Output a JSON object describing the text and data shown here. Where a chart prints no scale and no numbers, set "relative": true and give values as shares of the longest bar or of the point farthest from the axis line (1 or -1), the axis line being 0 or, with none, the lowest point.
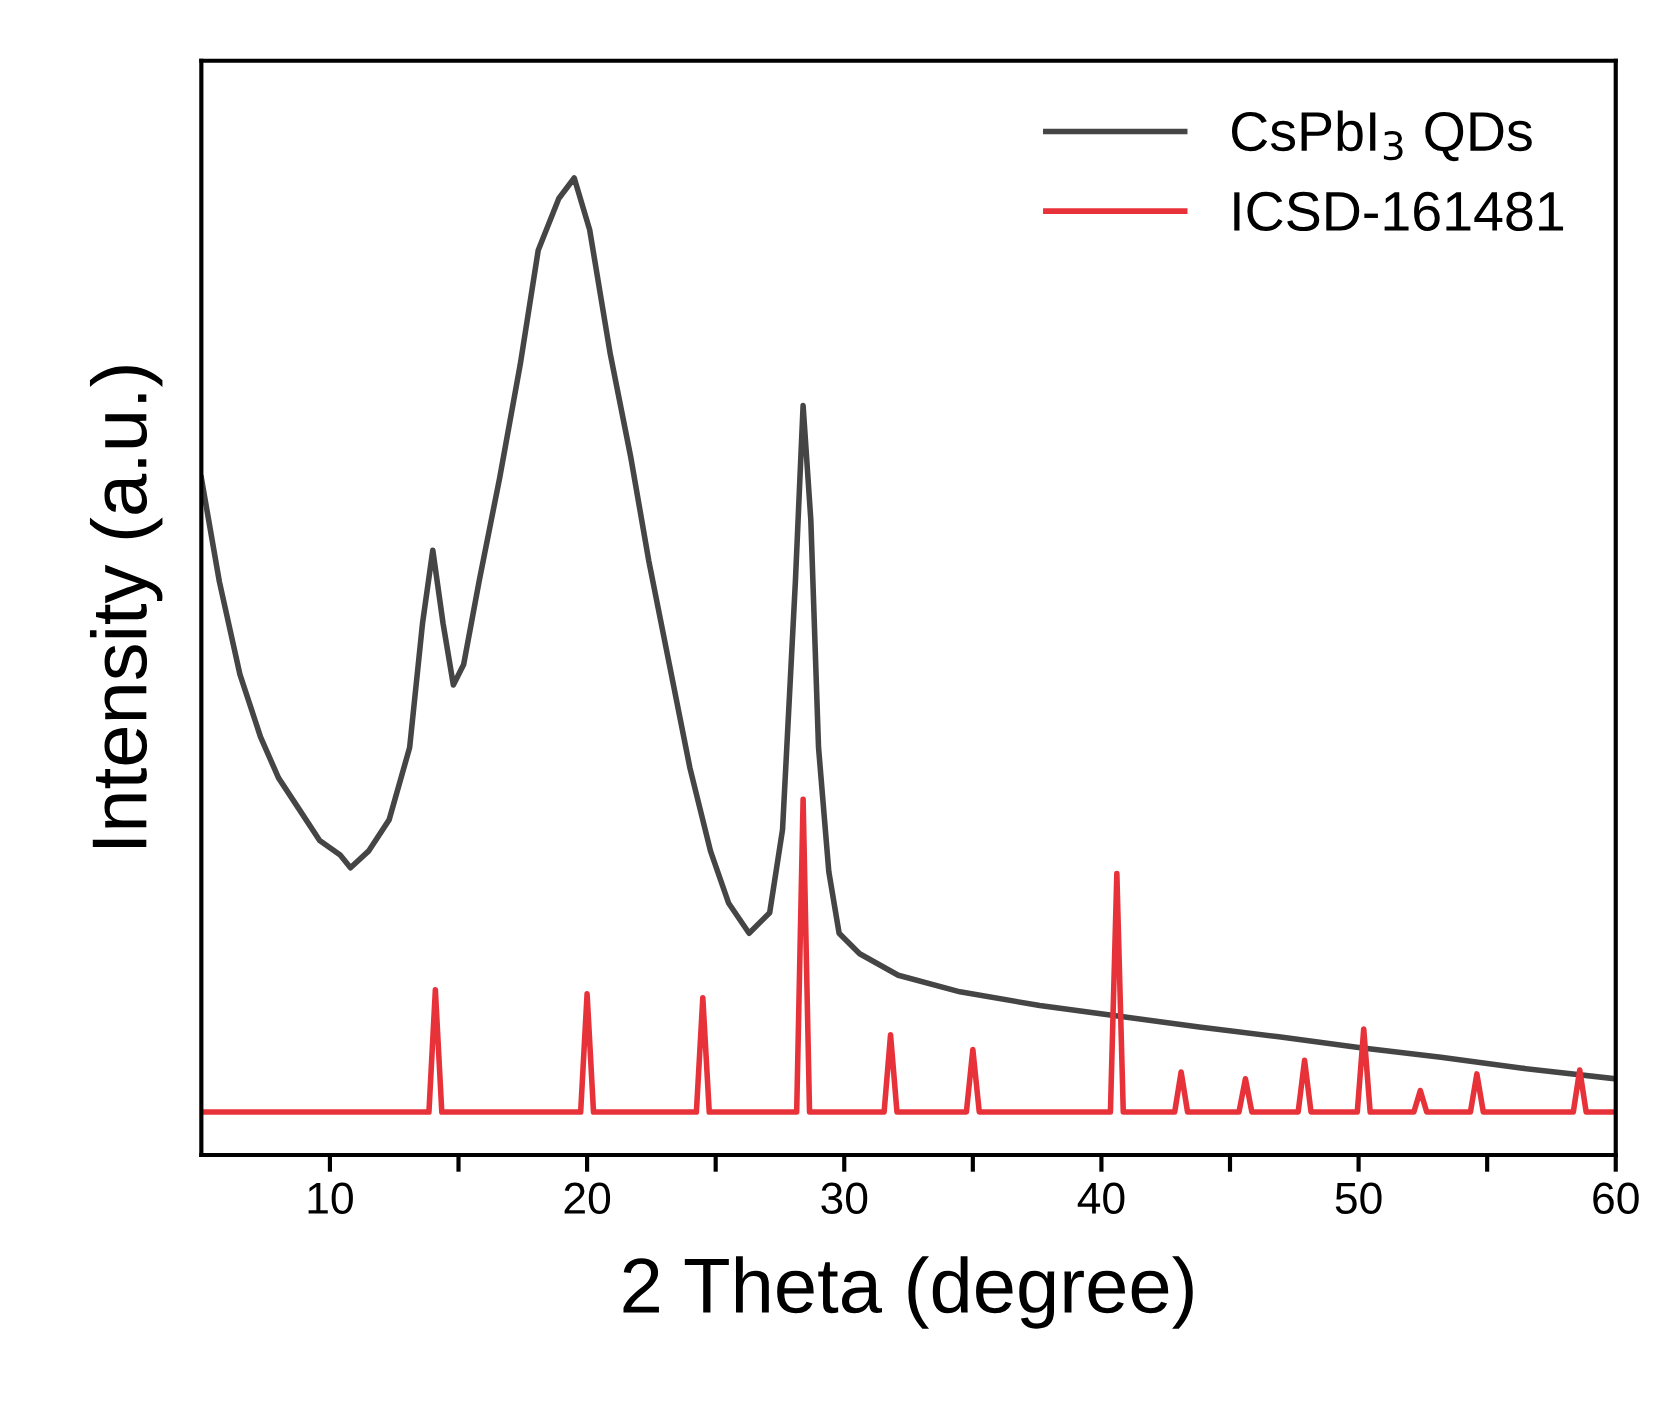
{
  "chart_data": {
    "type": "line",
    "relative": true,
    "xlabel": "2 Theta (degree)",
    "ylabel": "Intensity (a.u.)",
    "xlim": [
      5,
      60
    ],
    "xticks": [
      10,
      {
        "value": 15,
        "label": null
      },
      20,
      {
        "value": 25,
        "label": null
      },
      30,
      {
        "value": 35,
        "label": null
      },
      40,
      {
        "value": 45,
        "label": null
      },
      50,
      {
        "value": 55,
        "label": null
      },
      60
    ],
    "legend": "top right",
    "grid": false,
    "tick_labels": "x",
    "series": [
      {
        "name": "CsPbI$_{3}$ QDs",
        "color": "#454545",
        "x": [
          5.0,
          5.7,
          6.5,
          7.3,
          8.0,
          8.8,
          9.6,
          10.4,
          10.8,
          11.5,
          12.3,
          13.1,
          13.6,
          14.0,
          14.4,
          14.8,
          15.2,
          15.8,
          16.6,
          17.4,
          18.1,
          18.9,
          19.5,
          20.1,
          20.9,
          21.7,
          22.4,
          23.2,
          24.0,
          24.8,
          25.5,
          26.3,
          27.1,
          27.6,
          28.1,
          28.4,
          28.7,
          29.0,
          29.4,
          29.8,
          30.6,
          32.1,
          34.5,
          37.6,
          40.7,
          43.8,
          46.9,
          50.0,
          53.2,
          56.3,
          60.0
        ],
        "values": [
          0.693,
          0.587,
          0.492,
          0.428,
          0.386,
          0.354,
          0.322,
          0.307,
          0.294,
          0.311,
          0.343,
          0.417,
          0.544,
          0.619,
          0.544,
          0.481,
          0.502,
          0.587,
          0.693,
          0.809,
          0.926,
          0.979,
          1,
          0.947,
          0.82,
          0.714,
          0.608,
          0.502,
          0.396,
          0.311,
          0.258,
          0.227,
          0.248,
          0.333,
          0.587,
          0.767,
          0.65,
          0.417,
          0.29,
          0.227,
          0.206,
          0.184,
          0.167,
          0.153,
          0.142,
          0.131,
          0.121,
          0.11,
          0.1,
          0.089,
          0.078
        ]
      },
      {
        "name": "ICSD-161481",
        "color": "#e8323a",
        "x": [
          5,
          13.85,
          14.1,
          14.35,
          19.75,
          20.0,
          20.25,
          24.25,
          24.5,
          24.75,
          28.15,
          28.4,
          28.65,
          31.55,
          31.8,
          32.05,
          34.75,
          35.0,
          35.25,
          40.35,
          40.6,
          40.85,
          42.85,
          43.1,
          43.35,
          45.35,
          45.6,
          45.85,
          47.65,
          47.9,
          48.15,
          49.95,
          50.2,
          50.45,
          52.15,
          52.4,
          52.65,
          54.35,
          54.6,
          54.85,
          58.35,
          58.6,
          58.85,
          60
        ],
        "values": [
          0.044,
          0.044,
          0.169,
          0.044,
          0.044,
          0.165,
          0.044,
          0.044,
          0.161,
          0.044,
          0.044,
          0.364,
          0.044,
          0.044,
          0.123,
          0.044,
          0.044,
          0.108,
          0.044,
          0.044,
          0.288,
          0.044,
          0.044,
          0.085,
          0.044,
          0.044,
          0.078,
          0.044,
          0.044,
          0.097,
          0.044,
          0.044,
          0.129,
          0.044,
          0.044,
          0.066,
          0.044,
          0.044,
          0.083,
          0.044,
          0.044,
          0.087,
          0.044,
          0.044
        ]
      }
    ]
  }
}
